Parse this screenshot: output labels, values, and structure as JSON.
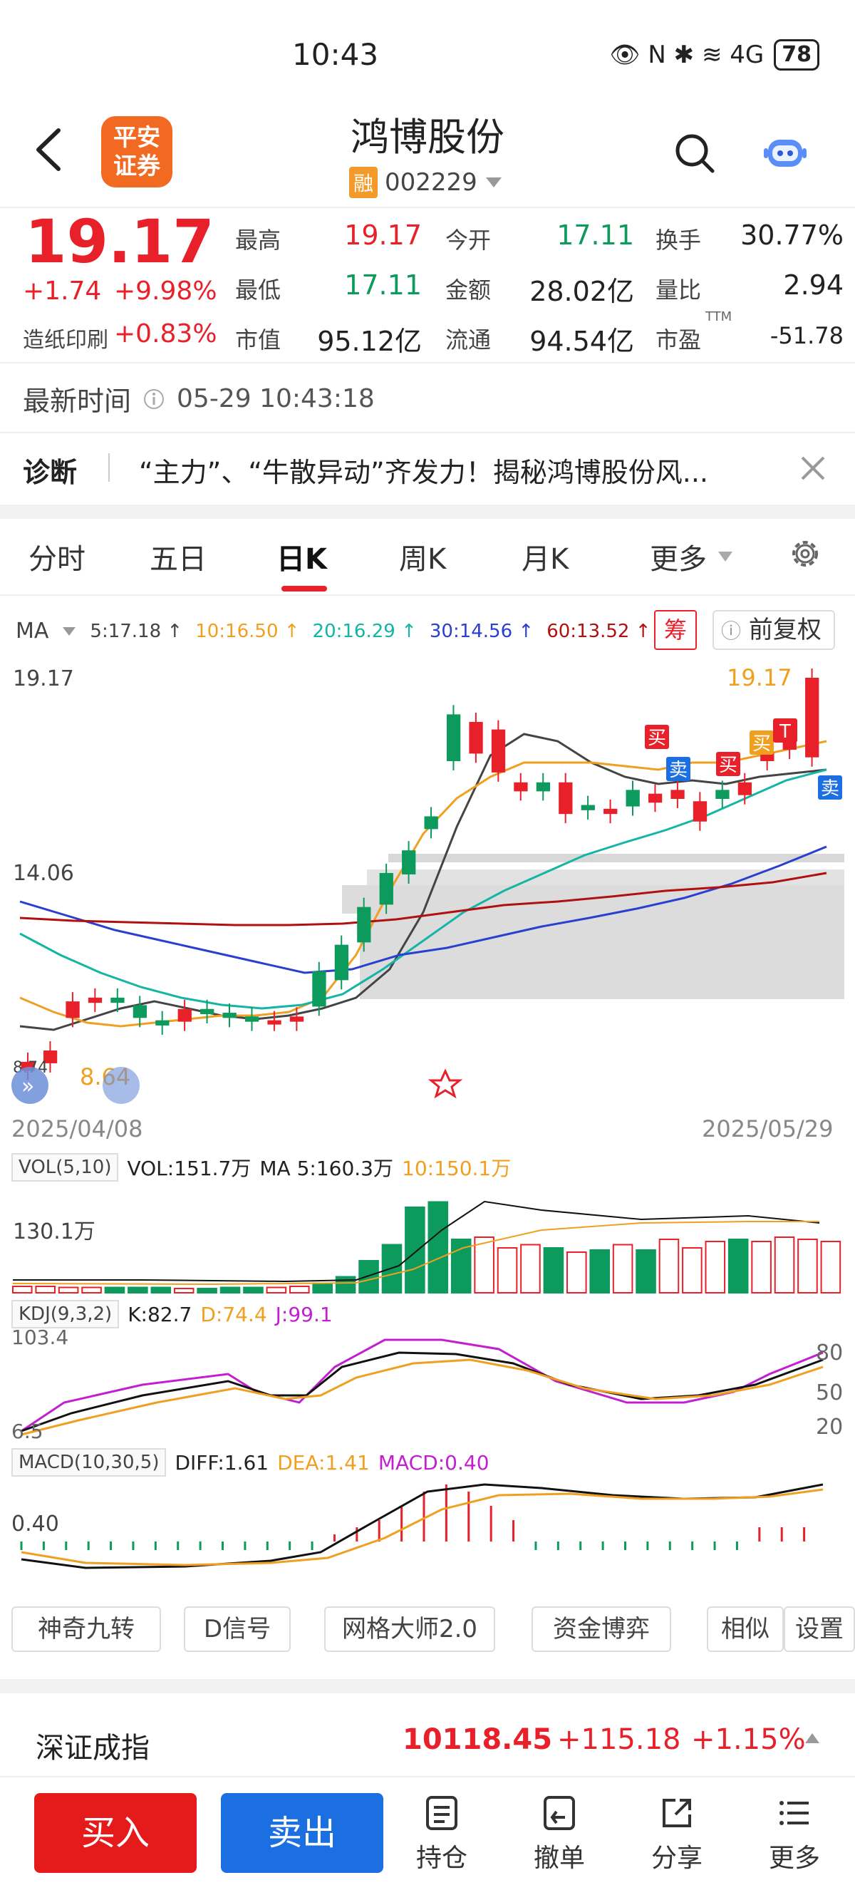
{
  "status_bar": {
    "time": "10:43",
    "icons": "👁 N ✱ ≋ 4G",
    "battery": "78"
  },
  "header": {
    "title": "鸿博股份",
    "badge": "融",
    "code": "002229",
    "broker_logo_text": [
      "平安",
      "证券"
    ]
  },
  "quote": {
    "price": "19.17",
    "change": "+1.74",
    "change_pct": "+9.98%",
    "sector_name": "造纸印刷",
    "sector_pct": "+0.83%",
    "fields": [
      {
        "label": "最高",
        "value": "19.17",
        "color": "red"
      },
      {
        "label": "今开",
        "value": "17.11",
        "color": "green"
      },
      {
        "label": "换手",
        "value": "30.77%",
        "color": "dark"
      },
      {
        "label": "最低",
        "value": "17.11",
        "color": "green"
      },
      {
        "label": "金额",
        "value": "28.02亿",
        "color": "dark"
      },
      {
        "label": "量比",
        "value": "2.94",
        "color": "dark"
      },
      {
        "label": "市值",
        "value": "95.12亿",
        "color": "dark"
      },
      {
        "label": "流通",
        "value": "94.54亿",
        "color": "dark"
      },
      {
        "label": "市盈",
        "value": "-51.78",
        "color": "dark",
        "superscript": "TTM"
      }
    ]
  },
  "update": {
    "label": "最新时间",
    "time": "05-29 10:43:18"
  },
  "diagnosis": {
    "label": "诊断",
    "text": "“主力”、“牛散异动”齐发力！揭秘鸿博股份风..."
  },
  "tabs": [
    "分时",
    "五日",
    "日K",
    "周K",
    "月K",
    "更多"
  ],
  "ma_legend": {
    "label": "MA",
    "items": [
      {
        "text": "5:17.18",
        "color": "#444444"
      },
      {
        "text": "10:16.50",
        "color": "#f0a020"
      },
      {
        "text": "20:16.29",
        "color": "#13b5a5"
      },
      {
        "text": "30:14.56",
        "color": "#2a3fcf"
      },
      {
        "text": "60:13.52",
        "color": "#b01010"
      }
    ],
    "chip_button": "筹",
    "adjust_button": "前复权"
  },
  "kline": {
    "y_top_label": "19.17",
    "y_mid_label": "14.06",
    "y_low_label": "8.74",
    "start_date": "2025/04/08",
    "end_date": "2025/05/29",
    "high_annotation": "19.17",
    "low_annotation": "8.64",
    "trade_marks": [
      "买",
      "卖",
      "买",
      "买",
      "T",
      "卖"
    ]
  },
  "volume": {
    "legend_box": "VOL(5,10)",
    "vol": "VOL:151.7万",
    "ma5": "MA 5:160.3万",
    "ma10": "10:150.1万",
    "axis_label": "130.1万"
  },
  "kdj": {
    "legend_box": "KDJ(9,3,2)",
    "k": "K:82.7",
    "d": "D:74.4",
    "j": "J:99.1",
    "top": "103.4",
    "bottom": "6.5",
    "levels": [
      "80",
      "50",
      "20"
    ]
  },
  "macd": {
    "legend_box": "MACD(10,30,5)",
    "diff": "DIFF:1.61",
    "dea": "DEA:1.41",
    "macd": "MACD:0.40",
    "axis_label": "0.40"
  },
  "tools": [
    "神奇九转",
    "D信号",
    "网格大师2.0",
    "资金博弈",
    "相似",
    "设置"
  ],
  "index": {
    "name": "深证成指",
    "value": "10118.45",
    "change": "+115.18",
    "pct": "+1.15%"
  },
  "bottom_bar": {
    "buy": "买入",
    "sell": "卖出",
    "items": [
      "持仓",
      "撤单",
      "分享",
      "更多"
    ]
  },
  "colors": {
    "up": "#e8202a",
    "down": "#0d9a5d",
    "accent": "#1c6fe0"
  }
}
